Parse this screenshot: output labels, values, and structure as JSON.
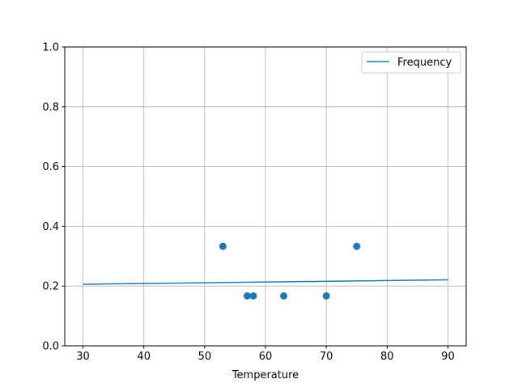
{
  "chart_data": {
    "type": "scatter",
    "title": "",
    "xlabel": "Temperature",
    "ylabel": "",
    "xlim": [
      27,
      93
    ],
    "ylim": [
      0,
      1.0
    ],
    "xticks": [
      30,
      40,
      50,
      60,
      70,
      80,
      90
    ],
    "yticks": [
      0.0,
      0.2,
      0.4,
      0.6,
      0.8,
      1.0
    ],
    "xtick_labels": [
      "30",
      "40",
      "50",
      "60",
      "70",
      "80",
      "90"
    ],
    "ytick_labels": [
      "0.0",
      "0.2",
      "0.4",
      "0.6",
      "0.8",
      "1.0"
    ],
    "grid": true,
    "legend": {
      "placement": "top-right",
      "entries": [
        "Frequency"
      ]
    },
    "series": [
      {
        "name": "Frequency",
        "kind": "line",
        "color": "#1f77b4",
        "x": [
          30,
          90
        ],
        "y": [
          0.206,
          0.221
        ]
      },
      {
        "kind": "scatter",
        "color": "#1f77b4",
        "x": [
          53,
          57,
          58,
          63,
          70,
          75
        ],
        "y": [
          0.333,
          0.167,
          0.167,
          0.167,
          0.167,
          0.333
        ]
      }
    ]
  }
}
